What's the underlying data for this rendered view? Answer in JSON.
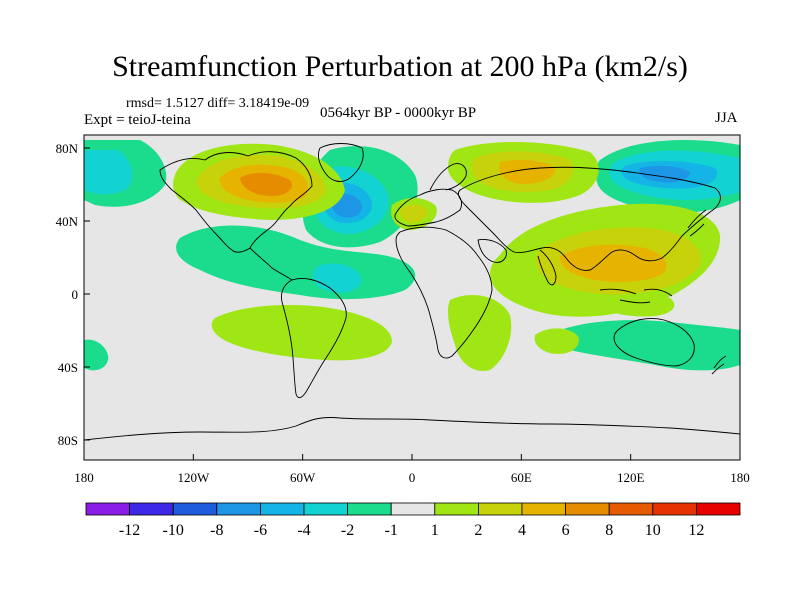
{
  "title": "Streamfunction Perturbation at 200 hPa (km2/s)",
  "stats": "rmsd= 1.5127 diff= 3.18419e-09",
  "expt": "Expt = teioJ-teina",
  "period": "0564kyr BP - 0000kyr BP",
  "season": "JJA",
  "map": {
    "lon_ticks": [
      "180",
      "120W",
      "60W",
      "0",
      "60E",
      "120E",
      "180"
    ],
    "lat_ticks": [
      "80N",
      "40N",
      "0",
      "40S",
      "80S"
    ],
    "background_color": "#e6e6e6"
  },
  "colorbar": {
    "labels": [
      "-12",
      "-10",
      "-8",
      "-6",
      "-4",
      "-2",
      "-1",
      "1",
      "2",
      "4",
      "6",
      "8",
      "10",
      "12"
    ],
    "colors": [
      "#8a1ee6",
      "#3c28e6",
      "#1e5adc",
      "#1e96e6",
      "#14b4e6",
      "#12d2d2",
      "#1adc8c",
      "#e6e6e6",
      "#a0e614",
      "#c8d20a",
      "#e6b400",
      "#e68c00",
      "#e65a00",
      "#e63200",
      "#e60000"
    ]
  }
}
